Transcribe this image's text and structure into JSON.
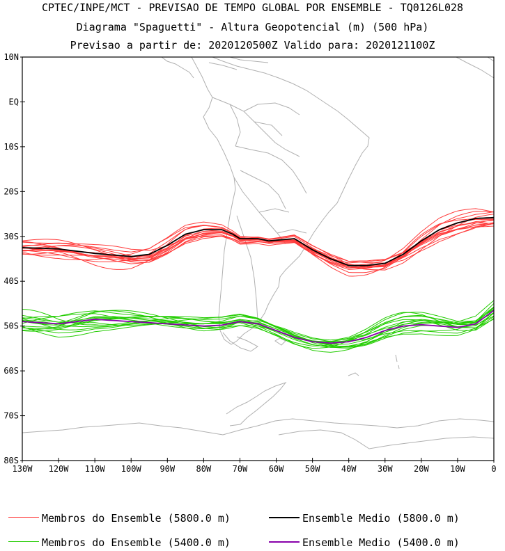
{
  "title": {
    "line1": "CPTEC/INPE/MCT - PREVISAO DE TEMPO GLOBAL POR ENSEMBLE - TQ0126L028",
    "line2": "Diagrama \"Spaguetti\" - Altura Geopotencial (m) (500 hPa)",
    "line3": "Previsao a partir de: 2020120500Z  Valido para: 2020121100Z"
  },
  "axes": {
    "lat_labels": [
      "10N",
      "EQ",
      "10S",
      "20S",
      "30S",
      "40S",
      "50S",
      "60S",
      "70S",
      "80S"
    ],
    "lon_labels": [
      "130W",
      "120W",
      "110W",
      "100W",
      "90W",
      "80W",
      "70W",
      "60W",
      "50W",
      "40W",
      "30W",
      "20W",
      "10W",
      "0"
    ],
    "lat_range": [
      -80,
      10
    ],
    "lon_range": [
      -130,
      0
    ]
  },
  "colors": {
    "member_5800": "#ff3b3b",
    "mean_5800": "#000000",
    "member_5400": "#22cc00",
    "mean_5400": "#8800aa",
    "coast": "#b0b0b0"
  },
  "legend": {
    "members_5800": "Membros do Ensemble (5800.0 m)",
    "mean_5800": "Ensemble Medio (5800.0 m)",
    "members_5400": "Membros do Ensemble (5400.0 m)",
    "mean_5400": "Ensemble Medio (5400.0 m)"
  },
  "chart_data": {
    "type": "line",
    "x_unit": "longitude (deg)",
    "y_unit": "latitude (deg)",
    "series": [
      {
        "name": "Ensemble Medio (5800.0 m)",
        "points": [
          [
            -130,
            -32.5
          ],
          [
            -120,
            -32.8
          ],
          [
            -110,
            -33.8
          ],
          [
            -100,
            -34.5
          ],
          [
            -95,
            -34
          ],
          [
            -90,
            -32
          ],
          [
            -85,
            -29.5
          ],
          [
            -80,
            -28.5
          ],
          [
            -75,
            -28.5
          ],
          [
            -72,
            -29.5
          ],
          [
            -70,
            -30.5
          ],
          [
            -65,
            -30.5
          ],
          [
            -62,
            -31
          ],
          [
            -55,
            -30.5
          ],
          [
            -50,
            -33
          ],
          [
            -45,
            -35
          ],
          [
            -40,
            -36.5
          ],
          [
            -35,
            -36.5
          ],
          [
            -30,
            -36
          ],
          [
            -25,
            -34
          ],
          [
            -20,
            -31
          ],
          [
            -15,
            -28.5
          ],
          [
            -10,
            -27
          ],
          [
            -5,
            -26
          ],
          [
            0,
            -25.8
          ]
        ]
      },
      {
        "name": "Ensemble Medio (5400.0 m)",
        "points": [
          [
            -130,
            -49
          ],
          [
            -120,
            -49.5
          ],
          [
            -110,
            -48.5
          ],
          [
            -100,
            -49
          ],
          [
            -90,
            -49.5
          ],
          [
            -80,
            -50
          ],
          [
            -75,
            -49.8
          ],
          [
            -70,
            -49
          ],
          [
            -65,
            -49.5
          ],
          [
            -60,
            -51
          ],
          [
            -55,
            -52.5
          ],
          [
            -50,
            -53.5
          ],
          [
            -45,
            -53.8
          ],
          [
            -40,
            -53.5
          ],
          [
            -35,
            -52.5
          ],
          [
            -30,
            -51
          ],
          [
            -25,
            -50
          ],
          [
            -20,
            -49.7
          ],
          [
            -15,
            -50
          ],
          [
            -10,
            -50.3
          ],
          [
            -5,
            -49.5
          ],
          [
            0,
            -46.5
          ]
        ]
      }
    ],
    "members_5800_count": 15,
    "members_5400_count": 15
  }
}
